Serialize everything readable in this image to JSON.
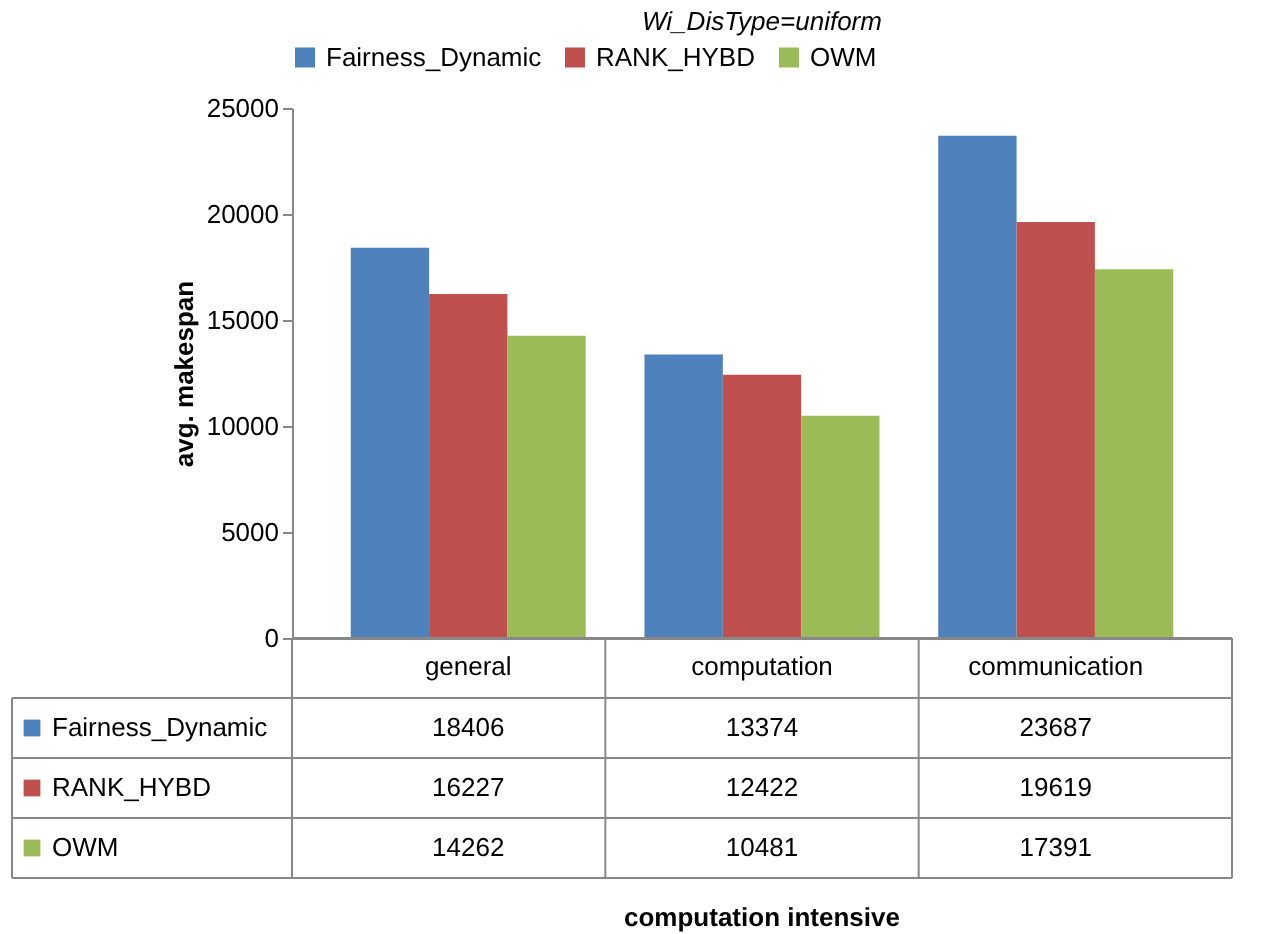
{
  "chart_data": {
    "type": "bar",
    "title": "Wi_DisType=uniform",
    "annotations": [
      "computation intensive"
    ],
    "ylabel": "avg. makespan",
    "categories": [
      "general",
      "computation",
      "communication"
    ],
    "series": [
      {
        "name": "Fairness_Dynamic",
        "color": "#4f81bd",
        "values": [
          18406,
          13374,
          23687
        ]
      },
      {
        "name": "RANK_HYBD",
        "color": "#c0504d",
        "values": [
          16227,
          12422,
          19619
        ]
      },
      {
        "name": "OWM",
        "color": "#9bbb59",
        "values": [
          14262,
          10481,
          17391
        ]
      }
    ],
    "ylim": [
      0,
      25000
    ],
    "yticks": [
      0,
      5000,
      10000,
      15000,
      20000,
      25000
    ],
    "grid": false,
    "legend": "top",
    "data_labels": true
  }
}
